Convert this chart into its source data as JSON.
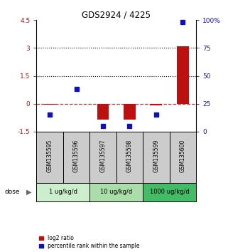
{
  "title": "GDS2924 / 4225",
  "samples": [
    "GSM135595",
    "GSM135596",
    "GSM135597",
    "GSM135598",
    "GSM135599",
    "GSM135600"
  ],
  "log2_ratio": [
    -0.05,
    -0.02,
    -0.85,
    -0.85,
    -0.1,
    3.1
  ],
  "percentile_rank": [
    15,
    38,
    5,
    5,
    15,
    98
  ],
  "ylim_left": [
    -1.5,
    4.5
  ],
  "ylim_right": [
    0,
    100
  ],
  "yticks_left": [
    -1.5,
    0,
    1.5,
    3,
    4.5
  ],
  "yticks_right": [
    0,
    25,
    50,
    75,
    100
  ],
  "ytick_labels_left": [
    "-1.5",
    "0",
    "1.5",
    "3",
    "4.5"
  ],
  "ytick_labels_right": [
    "0",
    "25",
    "50",
    "75",
    "100%"
  ],
  "hlines_dotted": [
    3.0,
    1.5
  ],
  "hline_dashed": 0.0,
  "bar_width": 0.45,
  "marker_size": 5,
  "red_color": "#bb1111",
  "blue_color": "#1111bb",
  "dose_info": [
    {
      "start": 0,
      "end": 2,
      "label": "1 ug/kg/d",
      "color": "#cceecc"
    },
    {
      "start": 2,
      "end": 4,
      "label": "10 ug/kg/d",
      "color": "#aaddaa"
    },
    {
      "start": 4,
      "end": 6,
      "label": "1000 ug/kg/d",
      "color": "#44bb66"
    }
  ],
  "legend_red_label": "log2 ratio",
  "legend_blue_label": "percentile rank within the sample",
  "dose_label": "dose",
  "sample_box_color": "#cccccc",
  "background_color": "#ffffff"
}
